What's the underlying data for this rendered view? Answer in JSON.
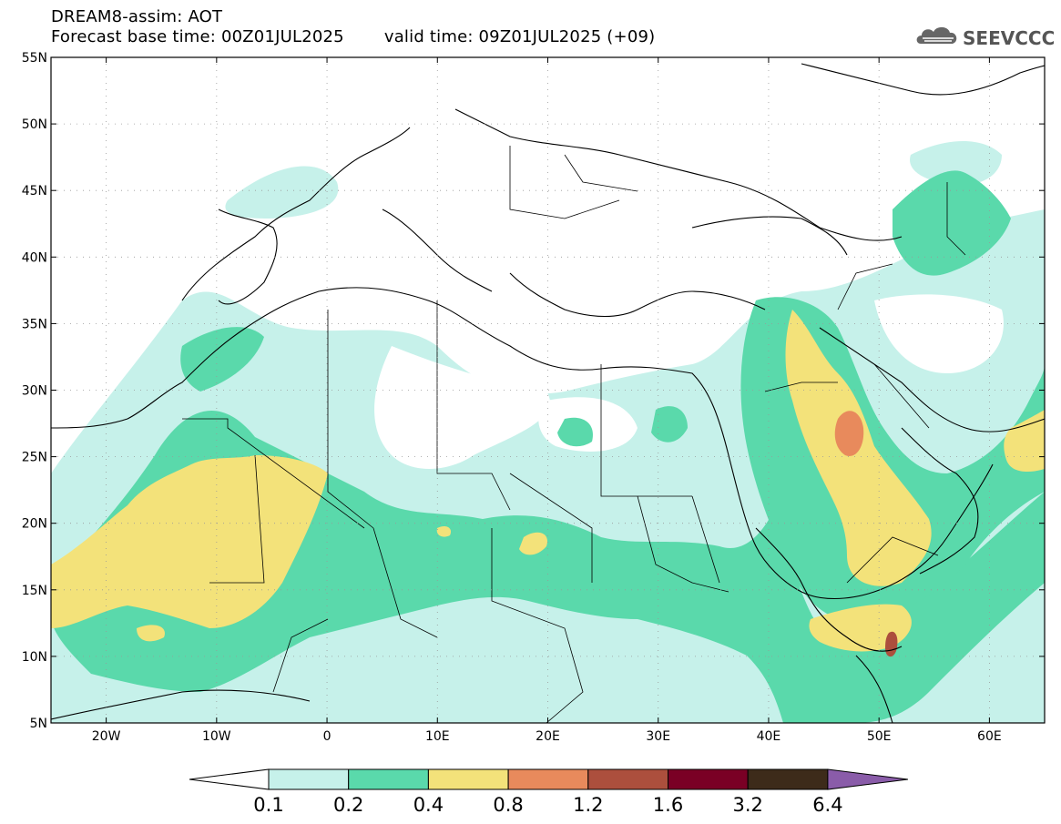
{
  "header": {
    "line1": "DREAM8-assim: AOT",
    "forecast_base": "Forecast base time: 00Z01JUL2025",
    "valid_time": "valid time: 09Z01JUL2025 (+09)",
    "logo_text": "SEEVCCC",
    "logo_icon": "cloud-icon"
  },
  "map": {
    "lon_range": [
      -25,
      65
    ],
    "lat_range": [
      5,
      55
    ],
    "lon_ticks": [
      "20W",
      "10W",
      "0",
      "10E",
      "20E",
      "30E",
      "40E",
      "50E",
      "60E"
    ],
    "lat_ticks": [
      "55N",
      "50N",
      "45N",
      "40N",
      "35N",
      "30N",
      "25N",
      "20N",
      "15N",
      "10N",
      "5N"
    ],
    "grid": "dotted"
  },
  "colorbar": {
    "labels": [
      "0.1",
      "0.2",
      "0.4",
      "0.8",
      "1.2",
      "1.6",
      "3.2",
      "6.4"
    ],
    "colors": [
      "#ffffff",
      "#c6f1ea",
      "#5ad9ab",
      "#f3e27a",
      "#e88a5c",
      "#ac4f3d",
      "#7a0025",
      "#3d2b1a",
      "#8a5ca9"
    ]
  }
}
